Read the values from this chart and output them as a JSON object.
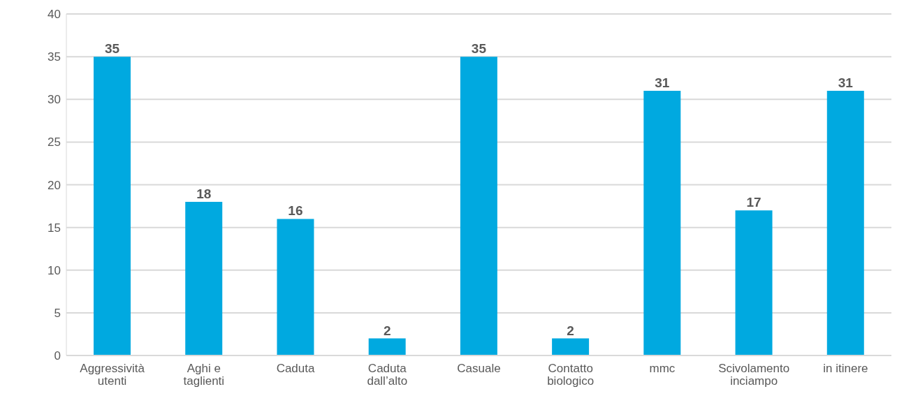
{
  "chart_data": {
    "type": "bar",
    "categories": [
      "Aggressività utenti",
      "Aghi e taglienti",
      "Caduta",
      "Caduta dall’alto",
      "Casuale",
      "Contatto biologico",
      "mmc",
      "Scivolamento inciampo",
      "in itinere"
    ],
    "values": [
      35,
      18,
      16,
      2,
      35,
      2,
      31,
      17,
      31
    ],
    "color": "#00a9e0",
    "ylim": [
      0,
      40
    ],
    "yticks": [
      0,
      5,
      10,
      15,
      20,
      25,
      30,
      35,
      40
    ],
    "grid": "y",
    "data_labels": true
  }
}
